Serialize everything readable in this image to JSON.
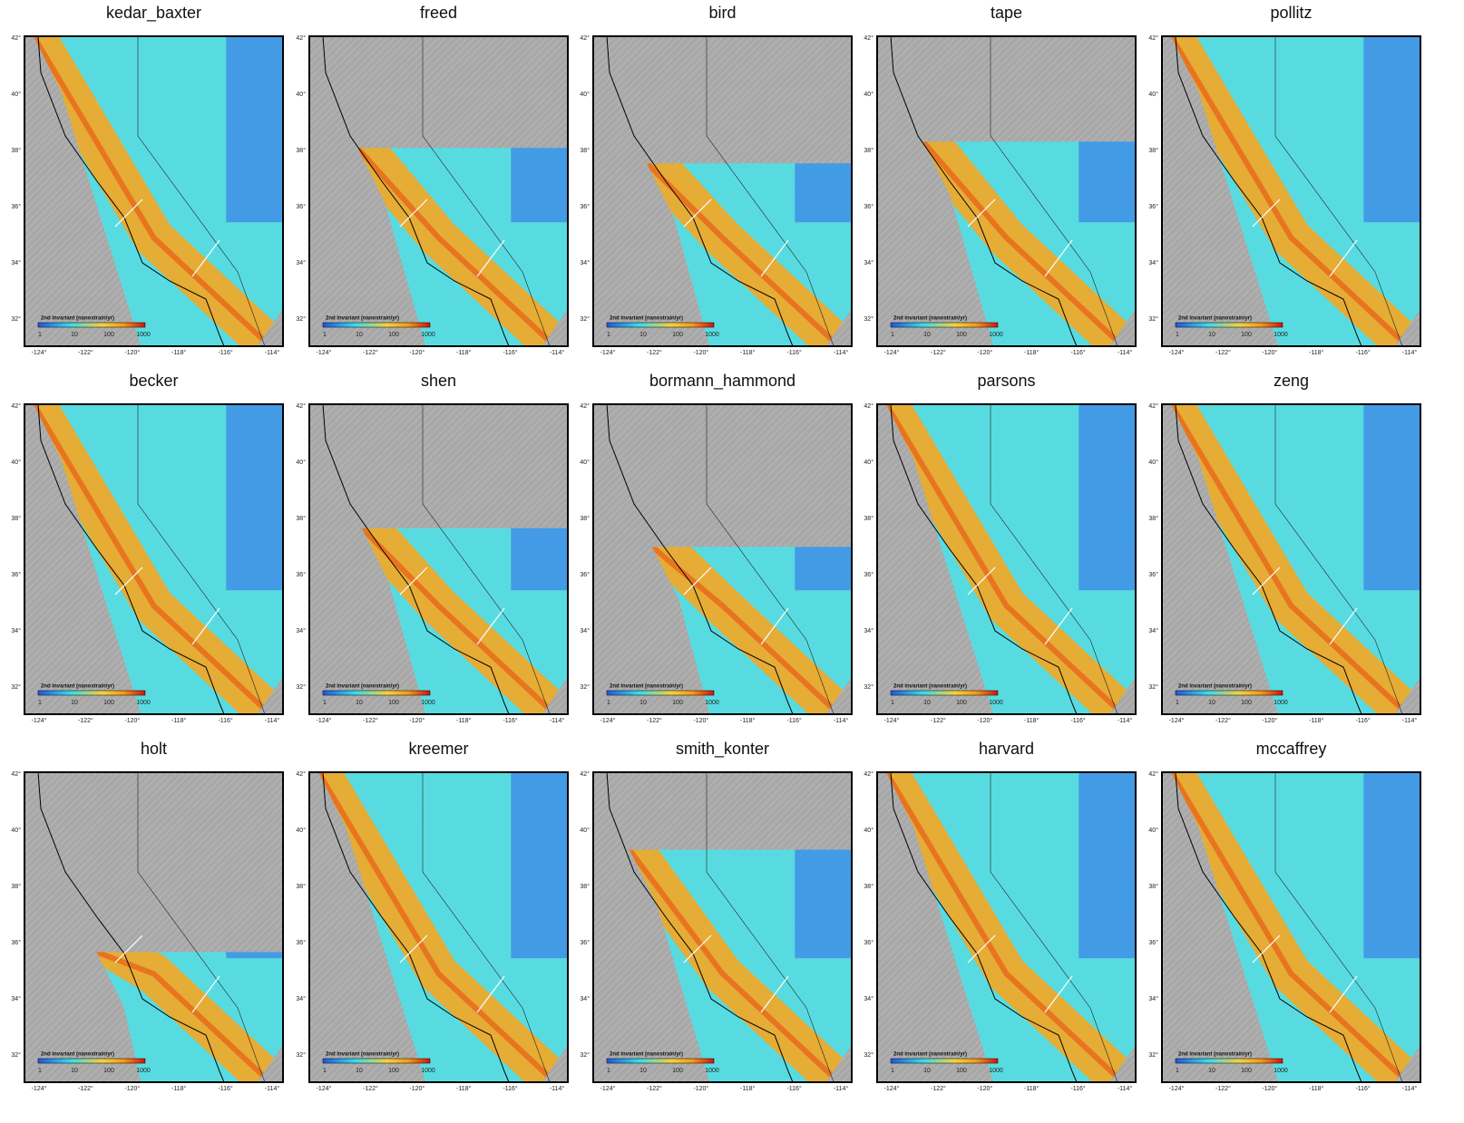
{
  "panels": [
    {
      "title": "kedar_baxter"
    },
    {
      "title": "freed"
    },
    {
      "title": "bird"
    },
    {
      "title": "tape"
    },
    {
      "title": "pollitz"
    },
    {
      "title": "becker"
    },
    {
      "title": "shen"
    },
    {
      "title": "bormann_hammond"
    },
    {
      "title": "parsons"
    },
    {
      "title": "zeng"
    },
    {
      "title": "holt"
    },
    {
      "title": "kreemer"
    },
    {
      "title": "smith_konter"
    },
    {
      "title": "harvard"
    },
    {
      "title": "mccaffrey"
    }
  ],
  "axes": {
    "lat_labels": [
      "42°",
      "40°",
      "38°",
      "36°",
      "34°",
      "32°"
    ],
    "lon_labels": [
      "-124°",
      "-122°",
      "-120°",
      "-118°",
      "-116°",
      "-114°"
    ]
  },
  "colorbar": {
    "label": "2nd invariant (nanostrain/yr)",
    "ticks": [
      "1",
      "10",
      "100",
      "1000"
    ]
  }
}
